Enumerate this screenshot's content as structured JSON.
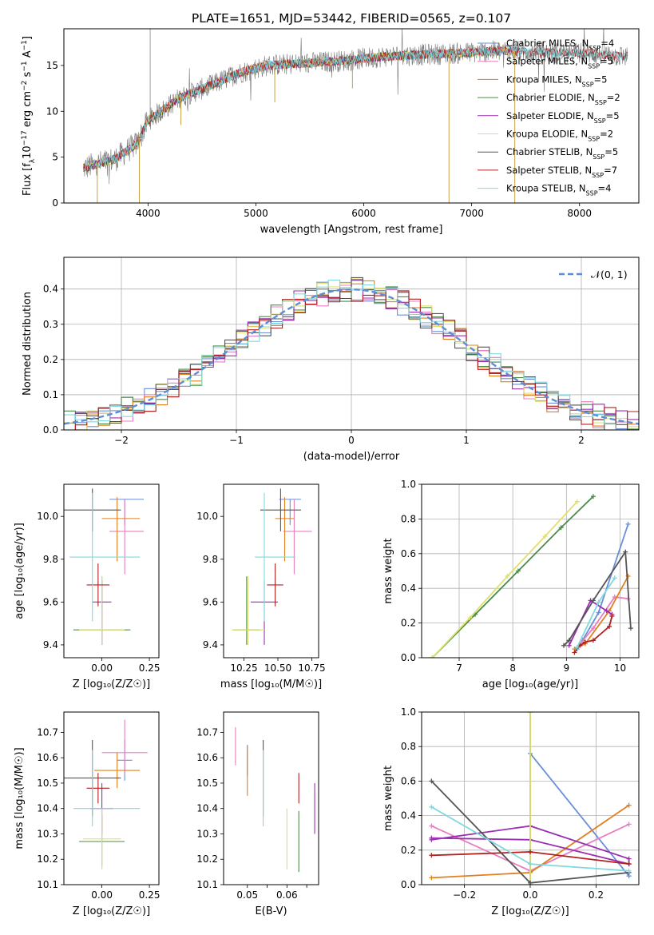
{
  "figure_title": "PLATE=1651, MJD=53442, FIBERID=0565, z=0.107",
  "chart_data": [
    {
      "id": "spectrum",
      "type": "line",
      "xlabel": "wavelength [Angstrom, rest frame]",
      "ylabel_parts": [
        "Flux [f",
        "λ",
        "10",
        "−17",
        " erg cm",
        "−2",
        " s",
        "−1",
        " A",
        "−1",
        "]"
      ],
      "xlim": [
        3220,
        8550
      ],
      "ylim": [
        0,
        19
      ],
      "xticks": [
        4000,
        5000,
        6000,
        7000,
        8000
      ],
      "yticks": [
        0,
        5,
        10,
        15
      ],
      "legend_position": "upper-right",
      "legend": [
        {
          "label": "Chabrier MILES, N",
          "sub": "SSP",
          "val": "=4",
          "color": "#6a8fd8"
        },
        {
          "label": "Salpeter MILES, N",
          "sub": "SSP",
          "val": "=5",
          "color": "#e87fc0"
        },
        {
          "label": "Kroupa MILES, N",
          "sub": "SSP",
          "val": "=5",
          "color": "#e0801f"
        },
        {
          "label": "Chabrier ELODIE, N",
          "sub": "SSP",
          "val": "=2",
          "color": "#4d8a4d"
        },
        {
          "label": "Salpeter ELODIE, N",
          "sub": "SSP",
          "val": "=5",
          "color": "#9b30b0"
        },
        {
          "label": "Kroupa ELODIE, N",
          "sub": "SSP",
          "val": "=2",
          "color": "#e0e070"
        },
        {
          "label": "Chabrier STELIB, N",
          "sub": "SSP",
          "val": "=5",
          "color": "#555555"
        },
        {
          "label": "Salpeter STELIB, N",
          "sub": "SSP",
          "val": "=7",
          "color": "#b22020"
        },
        {
          "label": "Kroupa STELIB, N",
          "sub": "SSP",
          "val": "=4",
          "color": "#80d8e0"
        }
      ],
      "continuum": [
        [
          3400,
          3.8
        ],
        [
          3700,
          4.8
        ],
        [
          3900,
          6.5
        ],
        [
          4000,
          9.0
        ],
        [
          4300,
          11.5
        ],
        [
          4600,
          12.9
        ],
        [
          4850,
          14.2
        ],
        [
          5100,
          15.0
        ],
        [
          5400,
          15.2
        ],
        [
          5800,
          15.5
        ],
        [
          6200,
          16.0
        ],
        [
          6600,
          16.2
        ],
        [
          7000,
          16.4
        ],
        [
          7300,
          16.6
        ],
        [
          7700,
          16.4
        ],
        [
          8100,
          16.3
        ],
        [
          8400,
          16.0
        ]
      ],
      "absorption_dips": [
        [
          3530,
          0
        ],
        [
          3920,
          0
        ],
        [
          4305,
          8.5
        ],
        [
          5175,
          11.0
        ],
        [
          5895,
          12.5
        ],
        [
          6790,
          0
        ],
        [
          7400,
          0
        ]
      ]
    },
    {
      "id": "residuals",
      "type": "histogram",
      "xlabel": "(data-model)/error",
      "ylabel": "Normed distribution",
      "xlim": [
        -2.5,
        2.5
      ],
      "ylim": [
        0,
        0.49
      ],
      "xticks": [
        -2,
        -1,
        0,
        1,
        2
      ],
      "xtick_labels": [
        "−2",
        "−1",
        "0",
        "1",
        "2"
      ],
      "yticks": [
        0.0,
        0.1,
        0.2,
        0.3,
        0.4
      ],
      "yticks_labels": [
        "0.0",
        "0.1",
        "0.2",
        "0.3",
        "0.4"
      ],
      "legend_position": "upper-right",
      "legend_label": "𝒩(0, 1)",
      "gaussian_color": "#5b8ed6",
      "bin_width": 0.1
    },
    {
      "id": "age-vs-Z",
      "type": "scatter",
      "xlabel": "Z [log₁₀(Z/Z☉)]",
      "ylabel": "age  [log₁₀(age/yr)]",
      "xlim": [
        -0.2,
        0.3
      ],
      "ylim": [
        9.34,
        10.15
      ],
      "xticks": [
        0.0,
        0.25
      ],
      "yticks": [
        9.4,
        9.6,
        9.8,
        10.0
      ],
      "xtick_labels": [
        "0.00",
        "0.25"
      ],
      "ytick_labels": [
        "9.4",
        "9.6",
        "9.8",
        "10.0"
      ]
    },
    {
      "id": "age-vs-mass",
      "type": "scatter",
      "xlabel": "mass [log₁₀(M/M☉)]",
      "xlim": [
        10.1,
        10.8
      ],
      "ylim": [
        9.34,
        10.15
      ],
      "xticks": [
        10.25,
        10.5,
        10.75
      ],
      "yticks": [
        9.4,
        9.6,
        9.8,
        10.0
      ],
      "xtick_labels": [
        "10.25",
        "10.50",
        "10.75"
      ],
      "ytick_labels": [
        "9.4",
        "9.6",
        "9.8",
        "10.0"
      ]
    },
    {
      "id": "weight-vs-age",
      "type": "line",
      "xlabel": "age  [log₁₀(age/yr)]",
      "ylabel": "mass weight",
      "xlim": [
        6.3,
        10.35
      ],
      "ylim": [
        0,
        1
      ],
      "xticks": [
        7,
        8,
        9,
        10
      ],
      "yticks": [
        0.0,
        0.2,
        0.4,
        0.6,
        0.8,
        1.0
      ],
      "xtick_labels": [
        "7",
        "8",
        "9",
        "10"
      ],
      "ytick_labels": [
        "0.0",
        "0.2",
        "0.4",
        "0.6",
        "0.8",
        "1.0"
      ]
    },
    {
      "id": "mass-vs-Z",
      "type": "scatter",
      "xlabel": "Z [log₁₀(Z/Z☉)]",
      "ylabel": "mass [log₁₀(M/M☉)]",
      "xlim": [
        -0.2,
        0.3
      ],
      "ylim": [
        10.1,
        10.78
      ],
      "xticks": [
        0.0,
        0.25
      ],
      "yticks": [
        10.1,
        10.2,
        10.3,
        10.4,
        10.5,
        10.6,
        10.7
      ],
      "xtick_labels": [
        "0.00",
        "0.25"
      ],
      "ytick_labels": [
        "10.1",
        "10.2",
        "10.3",
        "10.4",
        "10.5",
        "10.6",
        "10.7"
      ]
    },
    {
      "id": "mass-vs-EBV",
      "type": "scatter",
      "xlabel": "E(B-V)",
      "xlim": [
        0.044,
        0.068
      ],
      "ylim": [
        10.1,
        10.78
      ],
      "xticks": [
        0.05,
        0.055,
        0.06,
        0.065
      ],
      "yticks": [
        10.1,
        10.2,
        10.3,
        10.4,
        10.5,
        10.6,
        10.7
      ],
      "xtick_labels": [
        "0.05",
        "",
        "0.06",
        ""
      ],
      "ytick_labels": [
        "10.1",
        "10.2",
        "10.3",
        "10.4",
        "10.5",
        "10.6",
        "10.7"
      ]
    },
    {
      "id": "weight-vs-Z",
      "type": "line",
      "xlabel": "Z [log₁₀(Z/Z☉)]",
      "ylabel": "mass weight",
      "xlim": [
        -0.33,
        0.33
      ],
      "ylim": [
        0,
        1
      ],
      "xticks": [
        -0.2,
        0.0,
        0.2
      ],
      "yticks": [
        0.0,
        0.2,
        0.4,
        0.6,
        0.8,
        1.0
      ],
      "xtick_labels": [
        "−0.2",
        "0.0",
        "0.2"
      ],
      "ytick_labels": [
        "0.0",
        "0.2",
        "0.4",
        "0.6",
        "0.8",
        "1.0"
      ]
    }
  ],
  "models": [
    {
      "color": "#6a8fd8",
      "age": 10.08,
      "age_err": [
        0.12,
        0.0
      ],
      "Z": 0.12,
      "Z_err": [
        0.08,
        0.1
      ],
      "mass": 10.59,
      "mass_err": [
        0.08,
        0.08
      ],
      "mass_Zerr": [
        0.04,
        0.04
      ],
      "ebv": 0.05,
      "ebv_merr": [
        0.06,
        0.06
      ],
      "age_w": [
        [
          9.2,
          0.05
        ],
        [
          9.3,
          0.1
        ],
        [
          9.6,
          0.26
        ],
        [
          10.15,
          0.77
        ]
      ],
      "Z_w": [
        [
          0.0,
          0.76
        ],
        [
          0.3,
          0.05
        ]
      ]
    },
    {
      "color": "#e87fc0",
      "age": 9.93,
      "age_err": [
        0.2,
        0.15
      ],
      "Z": 0.12,
      "Z_err": [
        0.08,
        0.1
      ],
      "mass": 10.62,
      "mass_err": [
        0.08,
        0.13
      ],
      "mass_Zerr": [
        0.12,
        0.12
      ],
      "ebv": 0.047,
      "ebv_merr": [
        0.05,
        0.1
      ],
      "age_w": [
        [
          9.2,
          0.06
        ],
        [
          9.5,
          0.17
        ],
        [
          9.9,
          0.35
        ],
        [
          10.15,
          0.34
        ]
      ],
      "Z_w": [
        [
          -0.3,
          0.34
        ],
        [
          0.0,
          0.08
        ],
        [
          0.3,
          0.35
        ]
      ]
    },
    {
      "color": "#e0801f",
      "age": 9.99,
      "age_err": [
        0.2,
        0.1
      ],
      "Z": 0.08,
      "Z_err": [
        0.08,
        0.12
      ],
      "mass": 10.55,
      "mass_err": [
        0.07,
        0.07
      ],
      "mass_Zerr": [
        0.12,
        0.12
      ],
      "ebv": 0.05,
      "ebv_merr": [
        0.1,
        0.1
      ],
      "age_w": [
        [
          9.15,
          0.05
        ],
        [
          9.35,
          0.08
        ],
        [
          9.8,
          0.27
        ],
        [
          10.15,
          0.47
        ]
      ],
      "Z_w": [
        [
          -0.3,
          0.04
        ],
        [
          0.0,
          0.07
        ],
        [
          0.3,
          0.46
        ]
      ]
    },
    {
      "color": "#4d8a4d",
      "age": 9.47,
      "age_err": [
        0.07,
        0.25
      ],
      "Z": 0.0,
      "Z_err": [
        0.15,
        0.15
      ],
      "mass": 10.27,
      "mass_err": [
        0.1,
        0.1
      ],
      "mass_Zerr": [
        0.12,
        0.12
      ],
      "ebv": 0.063,
      "ebv_merr": [
        0.12,
        0.12
      ],
      "age_w": [
        [
          6.5,
          0.0
        ],
        [
          7.3,
          0.25
        ],
        [
          8.1,
          0.5
        ],
        [
          8.9,
          0.75
        ],
        [
          9.5,
          0.93
        ]
      ],
      "Z_w": [
        [
          0.0,
          0.0
        ],
        [
          0.0,
          1.0
        ]
      ]
    },
    {
      "color": "#9b30b0",
      "age": 9.6,
      "age_err": [
        0.2,
        0.1
      ],
      "Z": 0.0,
      "Z_err": [
        0.05,
        0.05
      ],
      "mass": 10.4,
      "mass_err": [
        0.1,
        0.1
      ],
      "mass_Zerr": [
        0.06,
        0.06
      ],
      "ebv": 0.067,
      "ebv_merr": [
        0.1,
        0.1
      ],
      "age_w": [
        [
          9.05,
          0.07
        ],
        [
          9.45,
          0.33
        ],
        [
          9.75,
          0.27
        ],
        [
          9.85,
          0.25
        ]
      ],
      "Z_w": [
        [
          -0.3,
          0.26
        ],
        [
          0.0,
          0.34
        ],
        [
          0.3,
          0.15
        ],
        [
          0.3,
          0.12
        ],
        [
          0.0,
          0.26
        ],
        [
          -0.3,
          0.27
        ]
      ]
    },
    {
      "color": "#e0e070",
      "age": 9.47,
      "age_err": [
        0.07,
        0.25
      ],
      "Z": 0.0,
      "Z_err": [
        0.12,
        0.12
      ],
      "mass": 10.28,
      "mass_err": [
        0.12,
        0.12
      ],
      "mass_Zerr": [
        0.1,
        0.1
      ],
      "ebv": 0.06,
      "ebv_merr": [
        0.12,
        0.12
      ],
      "age_w": [
        [
          6.5,
          0.0
        ],
        [
          7.2,
          0.23
        ],
        [
          7.9,
          0.47
        ],
        [
          8.6,
          0.7
        ],
        [
          9.2,
          0.9
        ]
      ],
      "Z_w": [
        [
          0.0,
          0.0
        ],
        [
          0.0,
          1.0
        ]
      ]
    },
    {
      "color": "#555555",
      "age": 10.03,
      "age_err": [
        0.1,
        0.1
      ],
      "Z": -0.05,
      "Z_err": [
        0.15,
        0.15
      ],
      "mass": 10.52,
      "mass_err": [
        0.15,
        0.15
      ],
      "mass_Zerr": [
        0.15,
        0.15
      ],
      "ebv": 0.054,
      "ebv_merr": [
        0.15,
        0.15
      ],
      "age_w": [
        [
          8.95,
          0.07
        ],
        [
          9.05,
          0.1
        ],
        [
          9.5,
          0.33
        ],
        [
          10.1,
          0.61
        ],
        [
          10.2,
          0.17
        ]
      ],
      "Z_w": [
        [
          -0.3,
          0.6
        ],
        [
          0.0,
          0.01
        ],
        [
          0.3,
          0.07
        ]
      ]
    },
    {
      "color": "#b22020",
      "age": 9.68,
      "age_err": [
        0.1,
        0.1
      ],
      "Z": -0.02,
      "Z_err": [
        0.06,
        0.06
      ],
      "mass": 10.48,
      "mass_err": [
        0.06,
        0.06
      ],
      "mass_Zerr": [
        0.06,
        0.06
      ],
      "ebv": 0.063,
      "ebv_merr": [
        0.06,
        0.06
      ],
      "age_w": [
        [
          9.15,
          0.03
        ],
        [
          9.25,
          0.07
        ],
        [
          9.35,
          0.09
        ],
        [
          9.5,
          0.1
        ],
        [
          9.8,
          0.18
        ],
        [
          9.85,
          0.24
        ]
      ],
      "Z_w": [
        [
          -0.3,
          0.17
        ],
        [
          0.0,
          0.19
        ],
        [
          0.3,
          0.12
        ]
      ]
    },
    {
      "color": "#80d8e0",
      "age": 9.81,
      "age_err": [
        0.3,
        0.3
      ],
      "Z": -0.05,
      "Z_err": [
        0.12,
        0.25
      ],
      "mass": 10.4,
      "mass_err": [
        0.07,
        0.23
      ],
      "mass_Zerr": [
        0.1,
        0.25
      ],
      "ebv": 0.054,
      "ebv_merr": [
        0.07,
        0.23
      ],
      "age_w": [
        [
          9.2,
          0.06
        ],
        [
          9.6,
          0.32
        ],
        [
          9.9,
          0.46
        ]
      ],
      "Z_w": [
        [
          -0.3,
          0.45
        ],
        [
          0.0,
          0.12
        ],
        [
          0.3,
          0.08
        ]
      ]
    }
  ]
}
